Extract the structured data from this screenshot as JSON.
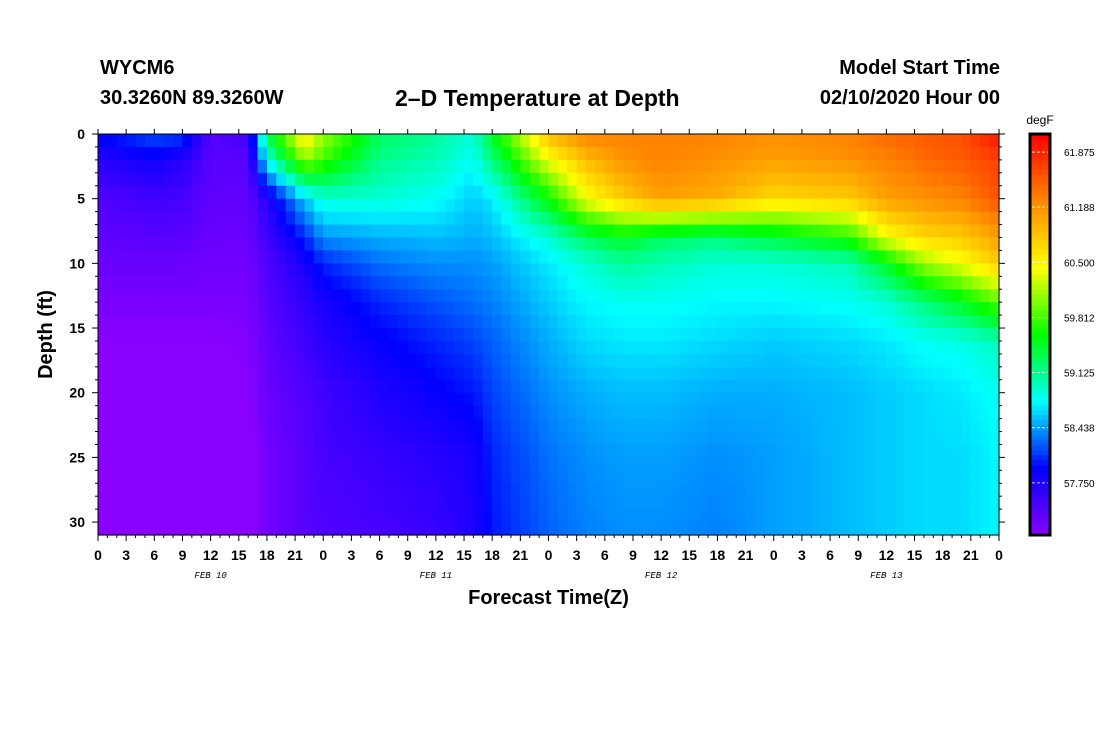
{
  "header": {
    "station": "WYCM6",
    "coords": "30.3260N 89.3260W",
    "title": "2–D Temperature at Depth",
    "model_label": "Model Start Time",
    "model_time": "02/10/2020 Hour 00"
  },
  "chart_data": {
    "type": "heatmap",
    "title": "2–D Temperature at Depth",
    "xlabel": "Forecast Time(Z)",
    "ylabel": "Depth (ft)",
    "x_tick_labels": [
      "0",
      "3",
      "6",
      "9",
      "12",
      "15",
      "18",
      "21",
      "0",
      "3",
      "6",
      "9",
      "12",
      "15",
      "18",
      "21",
      "0",
      "3",
      "6",
      "9",
      "12",
      "15",
      "18",
      "21",
      "0",
      "3",
      "6",
      "9",
      "12",
      "15",
      "18",
      "21",
      "0"
    ],
    "x_range_hours": [
      0,
      96
    ],
    "day_labels": [
      "FEB 10",
      "FEB 11",
      "FEB 12",
      "FEB 13"
    ],
    "y_ticks": [
      0,
      5,
      10,
      15,
      20,
      25,
      30
    ],
    "y_range_ft": [
      0,
      31
    ],
    "y_inverted": true,
    "colorbar": {
      "unit": "degF",
      "labels": [
        "61.875",
        "61.188",
        "60.500",
        "59.812",
        "59.125",
        "58.438",
        "57.750"
      ],
      "min": 57.1,
      "max": 62.1,
      "colors": [
        "#8a00ff",
        "#0000ff",
        "#00ffff",
        "#00ff00",
        "#ffff00",
        "#ff8800",
        "#ff0000"
      ]
    },
    "temperature_samples": {
      "hours": [
        0,
        6,
        9,
        12,
        16,
        18,
        22,
        24,
        30,
        36,
        40,
        42,
        48,
        52,
        56,
        60,
        66,
        72,
        80,
        84,
        88,
        92,
        96
      ],
      "depths_ft": [
        0,
        2,
        5,
        8,
        10,
        13,
        16,
        20,
        25,
        31
      ],
      "values_degF": [
        [
          57.95,
          58.2,
          58.15,
          57.4,
          57.55,
          59.4,
          60.6,
          60.1,
          59.3,
          59.1,
          58.9,
          59.5,
          60.9,
          61.3,
          61.3,
          61.3,
          61.3,
          61.2,
          61.3,
          61.45,
          61.55,
          61.6,
          62.0
        ],
        [
          57.7,
          57.85,
          57.7,
          57.4,
          57.4,
          58.8,
          60.1,
          59.8,
          59.15,
          59.0,
          58.8,
          59.2,
          60.4,
          60.9,
          61.2,
          61.3,
          61.2,
          61.1,
          61.2,
          61.3,
          61.45,
          61.55,
          61.7
        ],
        [
          57.45,
          57.55,
          57.5,
          57.35,
          57.35,
          57.7,
          58.6,
          58.9,
          58.9,
          58.8,
          58.6,
          58.7,
          59.6,
          60.4,
          60.8,
          61.1,
          61.0,
          60.7,
          60.8,
          61.1,
          61.2,
          61.3,
          61.6
        ],
        [
          57.35,
          57.4,
          57.4,
          57.3,
          57.3,
          57.55,
          58.05,
          58.4,
          58.5,
          58.55,
          58.5,
          58.55,
          58.9,
          59.3,
          59.5,
          59.3,
          59.2,
          59.4,
          59.7,
          60.4,
          60.7,
          60.8,
          61.1
        ],
        [
          57.3,
          57.3,
          57.3,
          57.25,
          57.25,
          57.45,
          57.8,
          58.05,
          58.3,
          58.4,
          58.4,
          58.45,
          58.7,
          58.9,
          59.1,
          59.0,
          58.9,
          58.9,
          59.0,
          59.5,
          60.1,
          60.4,
          60.8
        ],
        [
          57.2,
          57.2,
          57.2,
          57.2,
          57.2,
          57.4,
          57.65,
          57.8,
          58.05,
          58.2,
          58.3,
          58.35,
          58.6,
          58.75,
          58.8,
          58.8,
          58.75,
          58.75,
          58.8,
          58.9,
          59.2,
          59.5,
          59.9
        ],
        [
          57.1,
          57.1,
          57.1,
          57.1,
          57.15,
          57.35,
          57.55,
          57.7,
          57.9,
          58.05,
          58.15,
          58.25,
          58.5,
          58.65,
          58.7,
          58.7,
          58.65,
          58.6,
          58.65,
          58.7,
          58.8,
          58.85,
          59.0
        ],
        [
          57.05,
          57.05,
          57.05,
          57.05,
          57.1,
          57.3,
          57.45,
          57.55,
          57.75,
          57.9,
          58.0,
          58.15,
          58.4,
          58.5,
          58.55,
          58.55,
          58.5,
          58.5,
          58.55,
          58.6,
          58.65,
          58.7,
          58.8
        ],
        [
          57.05,
          57.05,
          57.05,
          57.05,
          57.05,
          57.25,
          57.4,
          57.5,
          57.6,
          57.7,
          57.8,
          58.05,
          58.3,
          58.4,
          58.45,
          58.45,
          58.4,
          58.45,
          58.55,
          58.6,
          58.65,
          58.65,
          58.75
        ],
        [
          57.0,
          57.0,
          57.0,
          57.0,
          57.05,
          57.25,
          57.4,
          57.45,
          57.5,
          57.6,
          57.75,
          58.0,
          58.25,
          58.35,
          58.4,
          58.4,
          58.35,
          58.45,
          58.55,
          58.6,
          58.65,
          58.65,
          58.75
        ]
      ]
    }
  }
}
